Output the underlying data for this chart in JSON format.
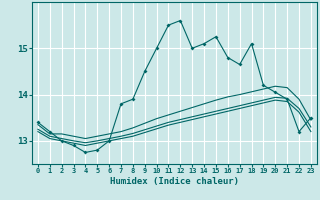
{
  "title": "",
  "xlabel": "Humidex (Indice chaleur)",
  "ylabel": "",
  "background_color": "#cce8e8",
  "grid_color": "#ffffff",
  "line_color": "#006666",
  "x_values": [
    0,
    1,
    2,
    3,
    4,
    5,
    6,
    7,
    8,
    9,
    10,
    11,
    12,
    13,
    14,
    15,
    16,
    17,
    18,
    19,
    20,
    21,
    22,
    23
  ],
  "main_line": [
    13.4,
    13.2,
    13.0,
    12.9,
    12.75,
    12.8,
    13.0,
    13.8,
    13.9,
    14.5,
    15.0,
    15.5,
    15.6,
    15.0,
    15.1,
    15.25,
    14.8,
    14.65,
    15.1,
    14.2,
    14.05,
    13.9,
    13.2,
    13.5
  ],
  "line2": [
    13.35,
    13.15,
    13.15,
    13.1,
    13.05,
    13.1,
    13.15,
    13.2,
    13.28,
    13.38,
    13.48,
    13.56,
    13.64,
    13.72,
    13.8,
    13.88,
    13.95,
    14.0,
    14.06,
    14.12,
    14.18,
    14.15,
    13.9,
    13.45
  ],
  "line3": [
    13.2,
    13.05,
    13.0,
    12.95,
    12.9,
    12.95,
    13.0,
    13.05,
    13.1,
    13.18,
    13.26,
    13.34,
    13.4,
    13.46,
    13.52,
    13.58,
    13.64,
    13.7,
    13.76,
    13.82,
    13.88,
    13.85,
    13.62,
    13.2
  ],
  "line4": [
    13.25,
    13.1,
    13.05,
    13.0,
    12.96,
    13.0,
    13.05,
    13.1,
    13.16,
    13.24,
    13.32,
    13.4,
    13.46,
    13.52,
    13.58,
    13.64,
    13.7,
    13.76,
    13.82,
    13.88,
    13.94,
    13.92,
    13.7,
    13.3
  ],
  "ylim": [
    12.5,
    16.0
  ],
  "yticks": [
    13,
    14,
    15
  ],
  "xlim": [
    -0.5,
    23.5
  ],
  "xticks": [
    0,
    1,
    2,
    3,
    4,
    5,
    6,
    7,
    8,
    9,
    10,
    11,
    12,
    13,
    14,
    15,
    16,
    17,
    18,
    19,
    20,
    21,
    22,
    23
  ],
  "xlabel_fontsize": 6.5,
  "ytick_fontsize": 6.5,
  "xtick_fontsize": 5.0
}
